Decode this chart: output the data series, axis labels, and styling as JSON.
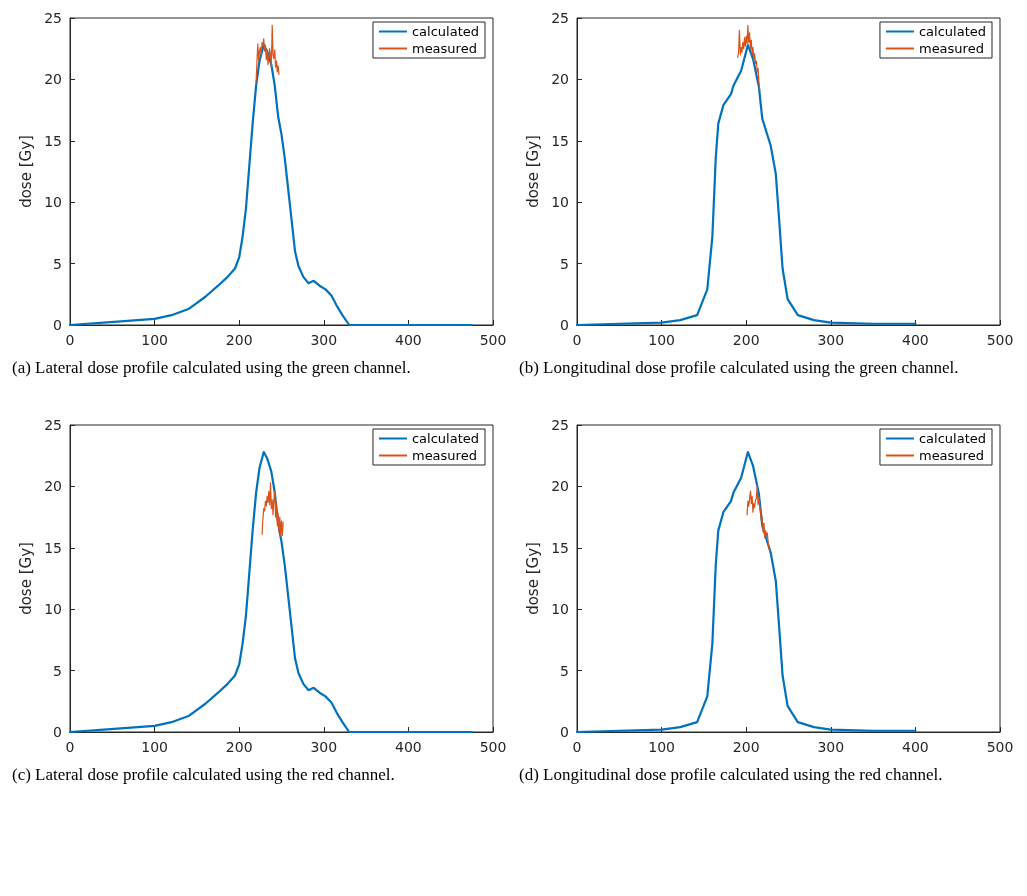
{
  "chart_data": [
    {
      "type": "line",
      "ylabel": "dose [Gy]",
      "xlim": [
        0,
        500
      ],
      "ylim": [
        0,
        25
      ],
      "xticks": [
        0,
        100,
        200,
        300,
        400,
        500
      ],
      "yticks": [
        0,
        5,
        10,
        15,
        20,
        25
      ],
      "legend": "top right",
      "annotations": [
        "(a) Lateral dose profile calculated using the green channel."
      ],
      "series": [
        {
          "name": "calculated",
          "color": "#0072bd",
          "x": [
            0,
            20,
            40,
            60,
            80,
            100,
            120,
            140,
            160,
            175,
            186,
            195,
            200,
            204,
            208,
            212,
            216,
            220,
            224,
            229,
            233,
            238,
            242,
            246,
            250,
            254,
            258,
            262,
            266,
            270,
            276,
            282,
            288,
            295,
            302,
            309,
            315,
            322,
            330,
            400,
            475
          ],
          "values": [
            0,
            0.1,
            0.2,
            0.3,
            0.4,
            0.5,
            0.8,
            1.3,
            2.3,
            3.2,
            3.9,
            4.6,
            5.5,
            7.2,
            9.5,
            13,
            16.5,
            19.5,
            21.5,
            22.8,
            22.3,
            21.2,
            19.5,
            17,
            15.5,
            13.5,
            11,
            8.5,
            6,
            4.8,
            3.9,
            3.4,
            3.6,
            3.2,
            2.9,
            2.4,
            1.6,
            0.8,
            0,
            0,
            0
          ]
        },
        {
          "name": "measured",
          "color": "#d95319",
          "x": [
            220,
            221,
            222,
            223,
            224,
            225,
            226,
            227,
            228,
            229,
            230,
            231,
            232,
            233,
            234,
            235,
            236,
            237,
            238,
            239,
            240,
            241,
            242,
            243,
            244,
            245,
            246,
            247
          ],
          "values": [
            19.8,
            21.5,
            22.9,
            21.5,
            22.3,
            22.6,
            22.0,
            23.0,
            22.8,
            23.3,
            22.3,
            22.8,
            21.6,
            22.4,
            21.2,
            21.8,
            22.5,
            22.0,
            21.0,
            24.4,
            22.0,
            21.7,
            22.4,
            21.0,
            21.5,
            20.6,
            21.1,
            20.4
          ]
        }
      ]
    },
    {
      "type": "line",
      "ylabel": "dose [Gy]",
      "xlim": [
        0,
        500
      ],
      "ylim": [
        0,
        25
      ],
      "xticks": [
        0,
        100,
        200,
        300,
        400,
        500
      ],
      "yticks": [
        0,
        5,
        10,
        15,
        20,
        25
      ],
      "legend": "top right",
      "annotations": [
        "(b) Longitudinal dose profile calculated using the green channel."
      ],
      "series": [
        {
          "name": "calculated",
          "color": "#0072bd",
          "x": [
            0,
            50,
            100,
            122,
            142,
            154,
            160,
            164,
            167,
            173,
            182,
            185,
            194,
            202,
            208,
            215,
            219,
            229,
            235,
            239,
            243,
            249,
            261,
            280,
            300,
            350,
            400
          ],
          "values": [
            0,
            0.1,
            0.2,
            0.4,
            0.8,
            2.9,
            7.2,
            13.6,
            16.4,
            17.9,
            18.8,
            19.5,
            20.7,
            22.8,
            21.7,
            19.4,
            16.8,
            14.6,
            12.3,
            8.5,
            4.6,
            2.1,
            0.8,
            0.4,
            0.2,
            0.1,
            0.1
          ]
        },
        {
          "name": "measured",
          "color": "#d95319",
          "x": [
            190,
            191,
            192,
            193,
            194,
            195,
            196,
            197,
            198,
            199,
            200,
            201,
            202,
            203,
            204,
            205,
            206,
            207,
            208,
            209,
            210,
            211,
            212,
            213,
            214,
            215,
            216
          ],
          "values": [
            21.8,
            22.3,
            24.0,
            22.0,
            22.6,
            22.2,
            23.0,
            22.5,
            23.4,
            22.7,
            23.5,
            22.9,
            24.4,
            23.0,
            23.8,
            22.5,
            23.2,
            22.0,
            22.6,
            21.6,
            22.1,
            21.3,
            21.5,
            20.6,
            20.9,
            19.8,
            19.1
          ]
        }
      ]
    },
    {
      "type": "line",
      "ylabel": "dose [Gy]",
      "xlim": [
        0,
        500
      ],
      "ylim": [
        0,
        25
      ],
      "xticks": [
        0,
        100,
        200,
        300,
        400,
        500
      ],
      "yticks": [
        0,
        5,
        10,
        15,
        20,
        25
      ],
      "legend": "top right",
      "annotations": [
        "(c) Lateral dose profile calculated using the red channel."
      ],
      "series": [
        {
          "name": "calculated",
          "color": "#0072bd",
          "x": [
            0,
            20,
            40,
            60,
            80,
            100,
            120,
            140,
            160,
            175,
            186,
            195,
            200,
            204,
            208,
            212,
            216,
            220,
            224,
            229,
            233,
            238,
            242,
            246,
            250,
            254,
            258,
            262,
            266,
            270,
            276,
            282,
            288,
            295,
            302,
            309,
            315,
            322,
            330,
            400,
            475
          ],
          "values": [
            0,
            0.1,
            0.2,
            0.3,
            0.4,
            0.5,
            0.8,
            1.3,
            2.3,
            3.2,
            3.9,
            4.6,
            5.5,
            7.2,
            9.5,
            13,
            16.5,
            19.5,
            21.5,
            22.8,
            22.3,
            21.2,
            19.5,
            17,
            15.5,
            13.5,
            11,
            8.5,
            6,
            4.8,
            3.9,
            3.4,
            3.6,
            3.2,
            2.9,
            2.4,
            1.6,
            0.8,
            0,
            0,
            0
          ]
        },
        {
          "name": "measured",
          "color": "#d95319",
          "x": [
            227,
            228,
            229,
            230,
            231,
            232,
            233,
            234,
            235,
            236,
            237,
            238,
            239,
            240,
            241,
            242,
            243,
            244,
            245,
            246,
            247,
            248,
            249,
            250,
            251,
            252
          ],
          "values": [
            16.1,
            17.3,
            18.2,
            18.0,
            18.8,
            18.4,
            19.2,
            18.7,
            19.6,
            18.5,
            20.3,
            18.2,
            18.9,
            17.7,
            19.0,
            19.6,
            17.5,
            18.7,
            16.8,
            17.8,
            16.3,
            17.5,
            16.0,
            17.2,
            16.0,
            17.1
          ]
        }
      ]
    },
    {
      "type": "line",
      "ylabel": "dose [Gy]",
      "xlim": [
        0,
        500
      ],
      "ylim": [
        0,
        25
      ],
      "xticks": [
        0,
        100,
        200,
        300,
        400,
        500
      ],
      "yticks": [
        0,
        5,
        10,
        15,
        20,
        25
      ],
      "legend": "top right",
      "annotations": [
        "(d) Longitudinal dose profile calculated using the red channel."
      ],
      "series": [
        {
          "name": "calculated",
          "color": "#0072bd",
          "x": [
            0,
            50,
            100,
            122,
            142,
            154,
            160,
            164,
            167,
            173,
            182,
            185,
            194,
            202,
            208,
            215,
            219,
            229,
            235,
            239,
            243,
            249,
            261,
            280,
            300,
            350,
            400
          ],
          "values": [
            0,
            0.1,
            0.2,
            0.4,
            0.8,
            2.9,
            7.2,
            13.6,
            16.4,
            17.9,
            18.8,
            19.5,
            20.7,
            22.8,
            21.7,
            19.4,
            16.8,
            14.6,
            12.3,
            8.5,
            4.6,
            2.1,
            0.8,
            0.4,
            0.2,
            0.1,
            0.1
          ]
        },
        {
          "name": "measured",
          "color": "#d95319",
          "x": [
            201,
            202,
            203,
            204,
            205,
            206,
            207,
            208,
            209,
            210,
            211,
            212,
            213,
            214,
            215,
            216,
            217,
            218,
            219,
            220,
            221,
            222,
            223,
            224,
            225,
            226,
            227,
            228
          ],
          "values": [
            17.7,
            18.8,
            18.4,
            19.0,
            19.6,
            18.6,
            19.2,
            17.9,
            18.6,
            18.3,
            18.9,
            19.0,
            20.1,
            18.5,
            19.1,
            18.4,
            17.9,
            17.2,
            17.5,
            16.3,
            17.0,
            15.8,
            16.4,
            16.0,
            16.2,
            15.4,
            15.0,
            14.6
          ]
        }
      ]
    }
  ]
}
